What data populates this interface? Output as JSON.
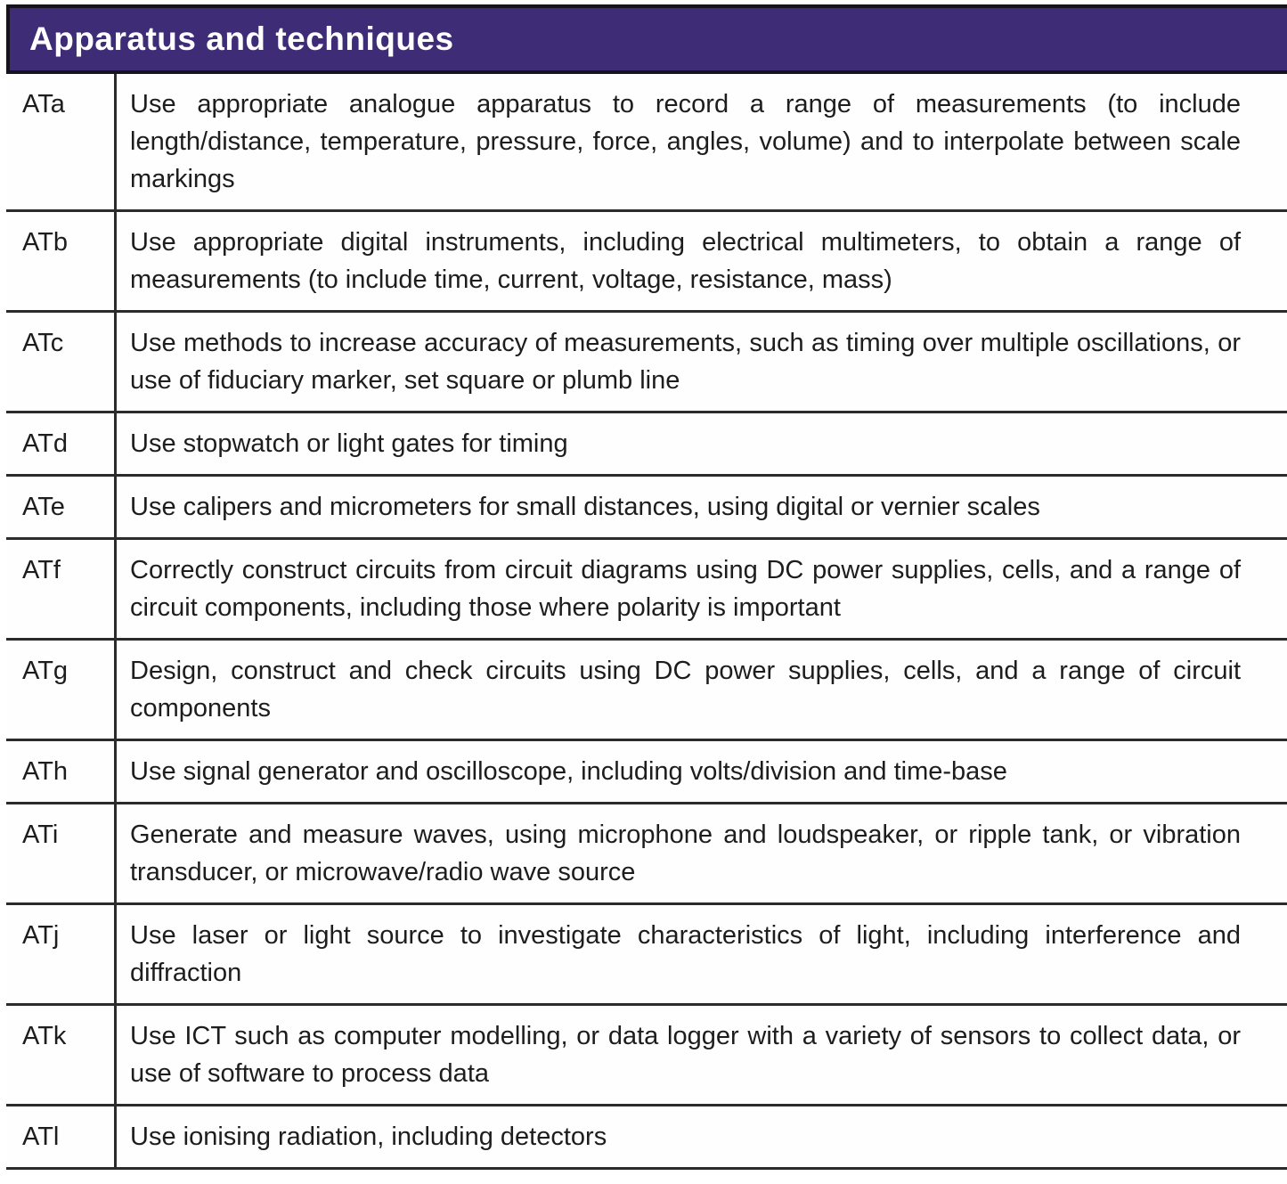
{
  "colors": {
    "header_bg": "#3e2c77",
    "header_text": "#ffffff",
    "line": "#2b2b2b",
    "body_text": "#1d1d1d"
  },
  "table": {
    "title": "Apparatus and techniques",
    "rows": [
      {
        "code": "ATa",
        "description": "Use appropriate analogue apparatus to record a range of measurements (to include length/distance, temperature, pressure, force, angles, volume) and to interpolate between scale markings"
      },
      {
        "code": "ATb",
        "description": "Use appropriate digital instruments, including electrical multimeters, to obtain a range of measurements (to include time, current, voltage, resistance, mass)"
      },
      {
        "code": "ATc",
        "description": "Use methods to increase accuracy of measurements, such as timing over multiple oscillations, or use of fiduciary marker, set square or plumb line"
      },
      {
        "code": "ATd",
        "description": "Use stopwatch or light gates for timing"
      },
      {
        "code": "ATe",
        "description": "Use calipers and micrometers for small distances, using digital or vernier scales"
      },
      {
        "code": "ATf",
        "description": "Correctly construct circuits from circuit diagrams using DC power supplies, cells, and a range of circuit components, including those where polarity is important"
      },
      {
        "code": "ATg",
        "description": "Design, construct and check circuits using DC power supplies, cells, and a range of circuit components"
      },
      {
        "code": "ATh",
        "description": "Use signal generator and oscilloscope, including volts/division and time-base"
      },
      {
        "code": "ATi",
        "description": "Generate and measure waves, using microphone and loudspeaker, or ripple tank, or vibration transducer, or microwave/radio wave source"
      },
      {
        "code": "ATj",
        "description": "Use laser or light source to investigate characteristics of light, including interference and diffraction"
      },
      {
        "code": "ATk",
        "description": "Use ICT such as computer modelling, or data logger with a variety of sensors to collect data, or use of software to process data"
      },
      {
        "code": "ATl",
        "description": "Use ionising radiation, including detectors"
      }
    ]
  }
}
